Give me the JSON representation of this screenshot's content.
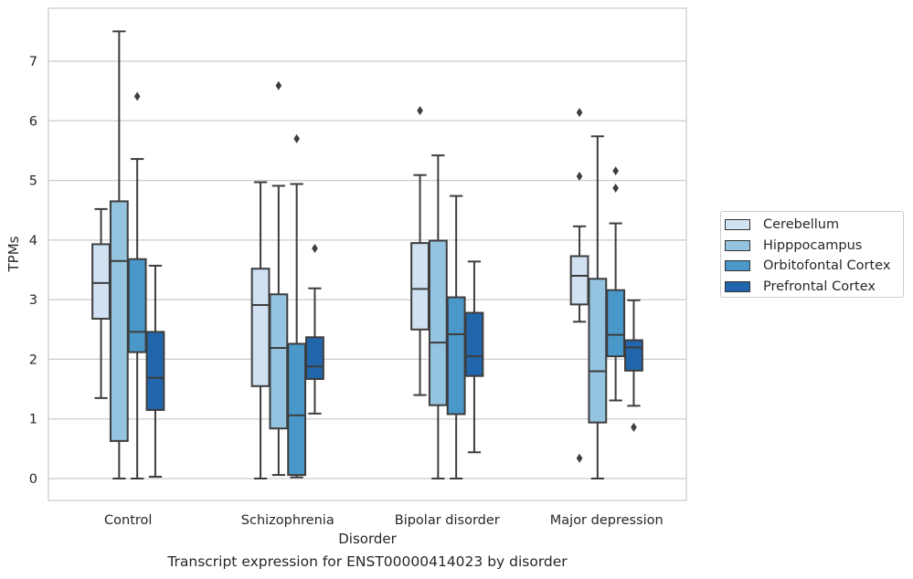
{
  "chart_data": {
    "type": "boxplot",
    "xlabel": "Disorder",
    "ylabel": "TPMs",
    "caption": "Transcript expression for ENST00000414023 by disorder",
    "ylim": [
      -0.35,
      7.9
    ],
    "yticks": [
      0,
      1,
      2,
      3,
      4,
      5,
      6,
      7
    ],
    "grid": "horizontal",
    "legend_position": "right",
    "categories": [
      "Control",
      "Schizophrenia",
      "Bipolar disorder",
      "Major depression"
    ],
    "series": [
      {
        "name": "Cerebellum",
        "color": "#d0e1f2",
        "boxes": [
          {
            "whislo": 1.35,
            "q1": 2.68,
            "med": 3.28,
            "q3": 3.93,
            "whishi": 4.52,
            "fliers": []
          },
          {
            "whislo": 0.0,
            "q1": 1.55,
            "med": 2.91,
            "q3": 3.52,
            "whishi": 4.97,
            "fliers": []
          },
          {
            "whislo": 1.4,
            "q1": 2.5,
            "med": 3.18,
            "q3": 3.95,
            "whishi": 5.09,
            "fliers": [
              6.17
            ]
          },
          {
            "whislo": 2.63,
            "q1": 2.92,
            "med": 3.4,
            "q3": 3.73,
            "whishi": 4.23,
            "fliers": [
              6.14,
              5.07,
              0.34
            ]
          }
        ]
      },
      {
        "name": "Hipppocampus",
        "color": "#94c4df",
        "boxes": [
          {
            "whislo": 0.0,
            "q1": 0.63,
            "med": 3.65,
            "q3": 4.65,
            "whishi": 7.5,
            "fliers": []
          },
          {
            "whislo": 0.06,
            "q1": 0.84,
            "med": 2.19,
            "q3": 3.09,
            "whishi": 4.91,
            "fliers": [
              6.59
            ]
          },
          {
            "whislo": 0.0,
            "q1": 1.23,
            "med": 2.28,
            "q3": 3.99,
            "whishi": 5.42,
            "fliers": []
          },
          {
            "whislo": 0.0,
            "q1": 0.94,
            "med": 1.8,
            "q3": 3.35,
            "whishi": 5.74,
            "fliers": []
          }
        ]
      },
      {
        "name": "Orbitofontal Cortex",
        "color": "#4a98c9",
        "boxes": [
          {
            "whislo": 0.0,
            "q1": 2.12,
            "med": 2.46,
            "q3": 3.68,
            "whishi": 5.36,
            "fliers": [
              6.41
            ]
          },
          {
            "whislo": 0.02,
            "q1": 0.06,
            "med": 1.06,
            "q3": 2.26,
            "whishi": 4.94,
            "fliers": [
              5.7
            ]
          },
          {
            "whislo": 0.0,
            "q1": 1.08,
            "med": 2.42,
            "q3": 3.04,
            "whishi": 4.74,
            "fliers": []
          },
          {
            "whislo": 1.31,
            "q1": 2.05,
            "med": 2.41,
            "q3": 3.16,
            "whishi": 4.28,
            "fliers": [
              5.16,
              4.87
            ]
          }
        ]
      },
      {
        "name": "Prefrontal Cortex",
        "color": "#2166ac",
        "boxes": [
          {
            "whislo": 0.03,
            "q1": 1.15,
            "med": 1.69,
            "q3": 2.46,
            "whishi": 3.57,
            "fliers": []
          },
          {
            "whislo": 1.09,
            "q1": 1.67,
            "med": 1.88,
            "q3": 2.37,
            "whishi": 3.19,
            "fliers": [
              3.86
            ]
          },
          {
            "whislo": 0.44,
            "q1": 1.72,
            "med": 2.05,
            "q3": 2.78,
            "whishi": 3.64,
            "fliers": []
          },
          {
            "whislo": 1.22,
            "q1": 1.81,
            "med": 2.2,
            "q3": 2.32,
            "whishi": 2.99,
            "fliers": [
              0.86
            ]
          }
        ]
      }
    ]
  }
}
